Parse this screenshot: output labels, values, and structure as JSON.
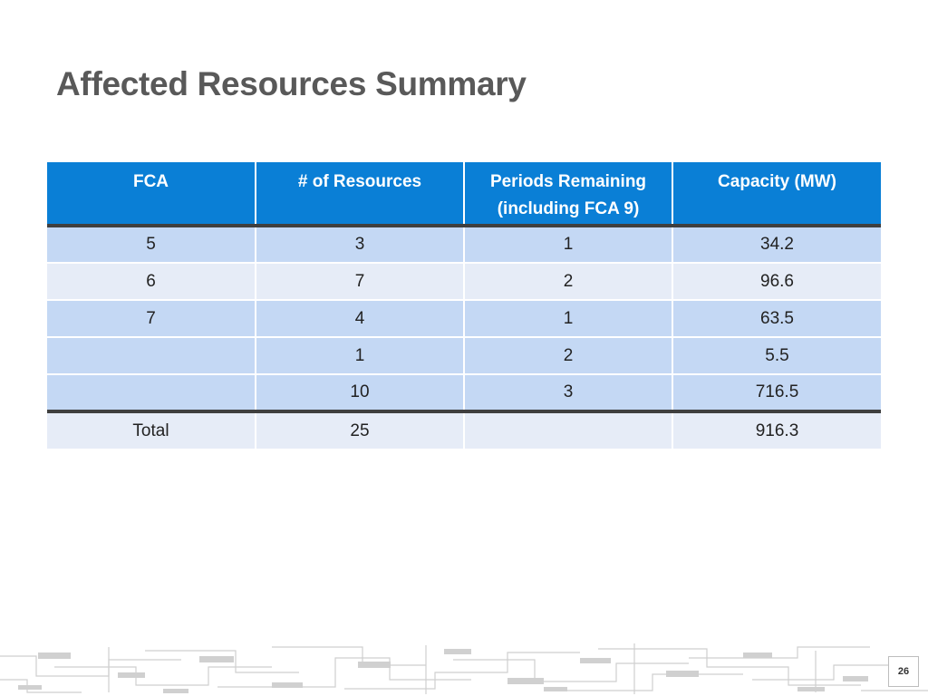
{
  "slide": {
    "title": "Affected Resources Summary",
    "page_number": "26"
  },
  "table": {
    "headers": [
      "FCA",
      "# of Resources",
      "Periods Remaining (including FCA 9)",
      "Capacity (MW)"
    ],
    "rows": [
      [
        "5",
        "3",
        "1",
        "34.2"
      ],
      [
        "6",
        "7",
        "2",
        "96.6"
      ],
      [
        "7",
        "4",
        "1",
        "63.5"
      ],
      [
        "",
        "1",
        "2",
        "5.5"
      ],
      [
        "",
        "10",
        "3",
        "716.5"
      ]
    ],
    "total": [
      "Total",
      "25",
      "",
      "916.3"
    ]
  },
  "colors": {
    "header_bg": "#0a7fd6",
    "row_band_dark": "#c4d8f4",
    "row_band_light": "#e6ecf7",
    "rule": "#3f3f3f",
    "title_text": "#595959"
  }
}
